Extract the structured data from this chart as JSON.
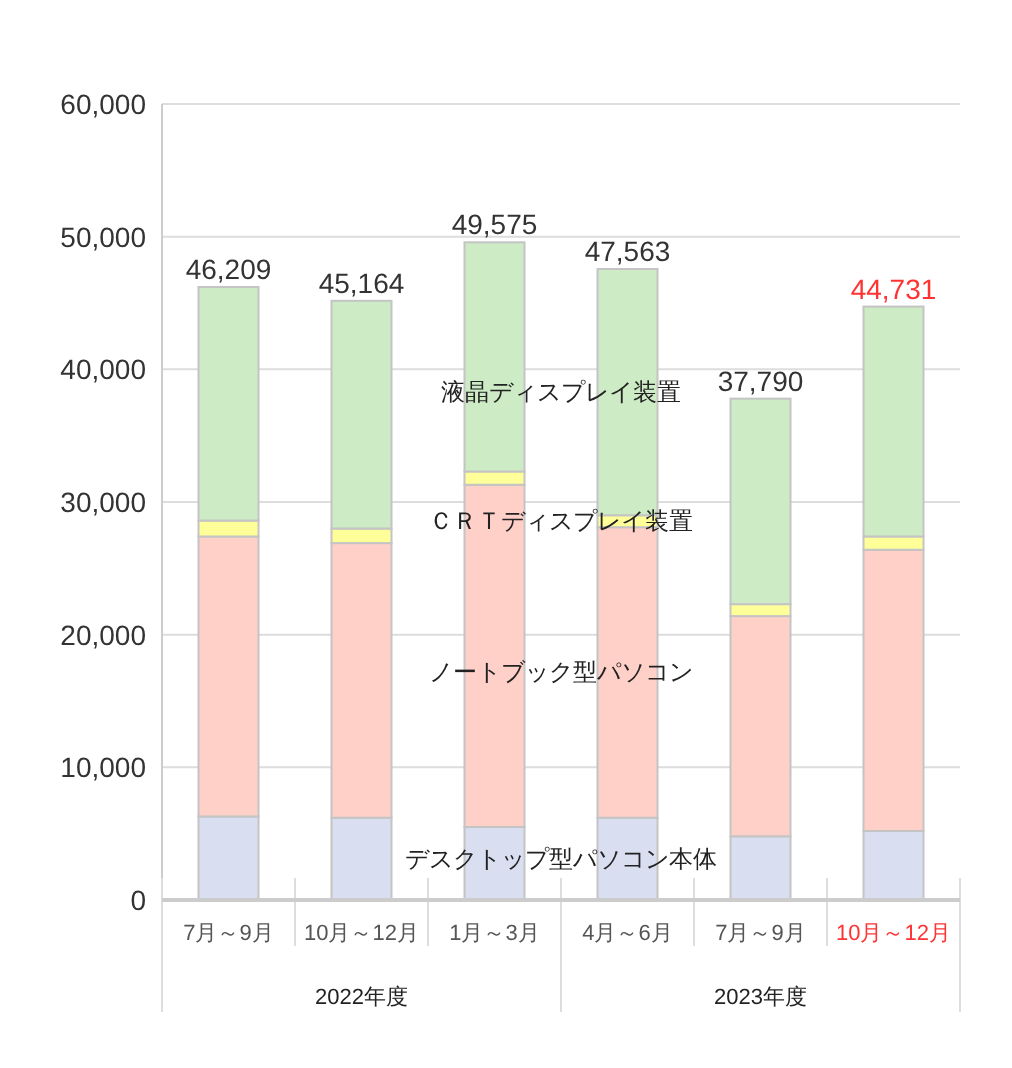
{
  "chart_data": {
    "type": "bar",
    "stacked": true,
    "categories": [
      "7月～9月",
      "10月～12月",
      "1月～3月",
      "4月～6月",
      "7月～9月",
      "10月～12月"
    ],
    "series": [
      {
        "name": "デスクトップ型パソコン本体",
        "color": "#d9dff0",
        "values": [
          6300,
          6200,
          5500,
          6200,
          4800,
          5200
        ]
      },
      {
        "name": "ノートブック型パソコン",
        "color": "#ffd0c8",
        "values": [
          21100,
          20700,
          25800,
          21900,
          16600,
          21200
        ]
      },
      {
        "name": "ＣＲＴディスプレイ装置",
        "color": "#ffff99",
        "values": [
          1200,
          1100,
          1000,
          900,
          900,
          1000
        ]
      },
      {
        "name": "液晶ディスプレイ装置",
        "color": "#cdebc4",
        "values": [
          17609,
          17164,
          17275,
          18563,
          15490,
          17331
        ]
      }
    ],
    "totals": [
      "46,209",
      "45,164",
      "49,575",
      "47,563",
      "37,790",
      "44,731"
    ],
    "ylim": [
      0,
      60000
    ],
    "yticks": [
      {
        "value": 0,
        "label": "0"
      },
      {
        "value": 10000,
        "label": "10,000"
      },
      {
        "value": 20000,
        "label": "20,000"
      },
      {
        "value": 30000,
        "label": "30,000"
      },
      {
        "value": 40000,
        "label": "40,000"
      },
      {
        "value": 50000,
        "label": "50,000"
      },
      {
        "value": 60000,
        "label": "60,000"
      }
    ],
    "grid": "y",
    "annotations": [
      "2022年度",
      "2023年度"
    ]
  }
}
